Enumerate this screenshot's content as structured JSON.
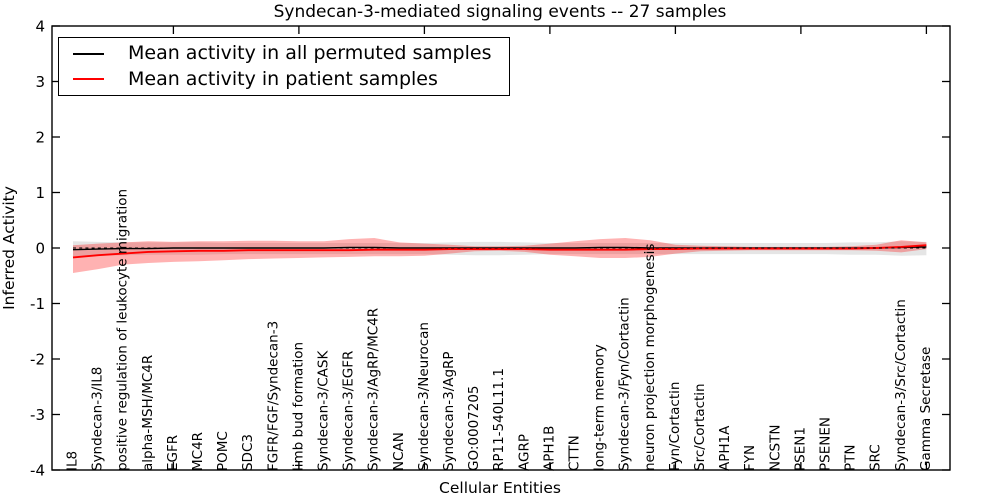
{
  "chart_data": {
    "type": "line",
    "title": "Syndecan-3-mediated signaling events -- 27 samples",
    "xlabel": "Cellular Entities",
    "ylabel": "Inferred Activity",
    "ylim": [
      -4,
      4
    ],
    "yticks": [
      -4,
      -3,
      -2,
      -1,
      0,
      1,
      2,
      3,
      4
    ],
    "xticks_at_indices": [
      5,
      10,
      15,
      20,
      25,
      30,
      35
    ],
    "grid": false,
    "legend_position": "upper left",
    "background": "#ffffff",
    "categories": [
      "IL8",
      "Syndecan-3/IL8",
      "positive regulation of leukocyte migration",
      "alpha-MSH/MC4R",
      "EGFR",
      "MC4R",
      "POMC",
      "SDC3",
      "FGFR/FGF/Syndecan-3",
      "limb bud formation",
      "Syndecan-3/CASK",
      "Syndecan-3/EGFR",
      "Syndecan-3/AgRP/MC4R",
      "NCAN",
      "Syndecan-3/Neurocan",
      "Syndecan-3/AgRP",
      "GO:0007205",
      "RP11-540L11.1",
      "AGRP",
      "APH1B",
      "CTTN",
      "long-term memory",
      "Syndecan-3/Fyn/Cortactin",
      "neuron projection morphogenesis",
      "Fyn/Cortactin",
      "Src/Cortactin",
      "APH1A",
      "FYN",
      "NCSTN",
      "PSEN1",
      "PSENEN",
      "PTN",
      "SRC",
      "Syndecan-3/Src/Cortactin",
      "Gamma Secretase"
    ],
    "series": [
      {
        "name": "Mean activity in all permuted samples",
        "color": "#000000",
        "style": "solid",
        "values": [
          -0.03,
          -0.02,
          -0.01,
          -0.01,
          0,
          0,
          0,
          0,
          0,
          0,
          0,
          0.01,
          0.01,
          0,
          0,
          0,
          0,
          0,
          0,
          0,
          0,
          0.01,
          0.01,
          0,
          0,
          0,
          0,
          0,
          0,
          0,
          0,
          0,
          0,
          0.01,
          0.02
        ]
      },
      {
        "name": "Mean activity in patient samples",
        "color": "#ff0000",
        "style": "solid",
        "values": [
          -0.17,
          -0.13,
          -0.1,
          -0.07,
          -0.06,
          -0.05,
          -0.05,
          -0.04,
          -0.04,
          -0.04,
          -0.04,
          -0.04,
          -0.03,
          -0.03,
          -0.03,
          -0.02,
          -0.02,
          -0.02,
          -0.02,
          -0.03,
          -0.03,
          -0.03,
          -0.03,
          -0.02,
          -0.02,
          -0.01,
          -0.01,
          -0.01,
          -0.01,
          -0.01,
          -0.01,
          -0.01,
          0.0,
          0.02,
          0.05
        ]
      }
    ],
    "bands": [
      {
        "name": "permuted samples range",
        "color": "#000000",
        "opacity": 0.1,
        "upper": [
          0.12,
          0.11,
          0.1,
          0.1,
          0.1,
          0.1,
          0.09,
          0.09,
          0.09,
          0.09,
          0.09,
          0.09,
          0.09,
          0.09,
          0.09,
          0.1,
          0.11,
          0.11,
          0.1,
          0.09,
          0.09,
          0.09,
          0.09,
          0.09,
          0.09,
          0.09,
          0.09,
          0.09,
          0.09,
          0.09,
          0.09,
          0.1,
          0.1,
          0.12,
          0.11
        ],
        "lower": [
          -0.15,
          -0.14,
          -0.13,
          -0.12,
          -0.12,
          -0.12,
          -0.11,
          -0.11,
          -0.11,
          -0.11,
          -0.11,
          -0.11,
          -0.11,
          -0.11,
          -0.11,
          -0.12,
          -0.13,
          -0.13,
          -0.12,
          -0.11,
          -0.11,
          -0.11,
          -0.11,
          -0.11,
          -0.11,
          -0.11,
          -0.11,
          -0.11,
          -0.11,
          -0.11,
          -0.11,
          -0.12,
          -0.12,
          -0.14,
          -0.13
        ]
      },
      {
        "name": "patient samples range",
        "color": "#ff0000",
        "opacity": 0.3,
        "upper": [
          0.05,
          0.08,
          0.1,
          0.12,
          0.11,
          0.12,
          0.12,
          0.13,
          0.13,
          0.12,
          0.12,
          0.16,
          0.18,
          0.1,
          0.08,
          0.06,
          0.03,
          0.03,
          0.04,
          0.08,
          0.12,
          0.16,
          0.18,
          0.14,
          0.06,
          0.04,
          0.03,
          0.02,
          0.02,
          0.02,
          0.02,
          0.03,
          0.06,
          0.14,
          0.1
        ],
        "lower": [
          -0.45,
          -0.38,
          -0.3,
          -0.27,
          -0.25,
          -0.24,
          -0.22,
          -0.2,
          -0.19,
          -0.18,
          -0.17,
          -0.16,
          -0.15,
          -0.15,
          -0.14,
          -0.1,
          -0.06,
          -0.05,
          -0.07,
          -0.12,
          -0.15,
          -0.18,
          -0.18,
          -0.16,
          -0.1,
          -0.06,
          -0.05,
          -0.04,
          -0.04,
          -0.04,
          -0.04,
          -0.04,
          -0.05,
          -0.08,
          -0.02
        ]
      }
    ],
    "zero_reference_line": {
      "y": 0,
      "style": "dashed",
      "color": "#000000"
    }
  }
}
